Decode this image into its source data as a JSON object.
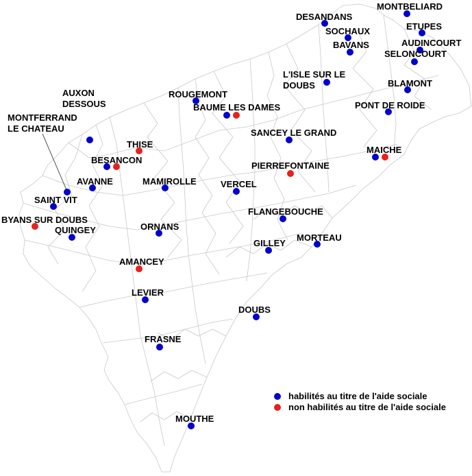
{
  "colors": {
    "habilite": "#0000cc",
    "non_habilite": "#e8211c",
    "border": "#c8c8c8",
    "leader": "#555555"
  },
  "legend": {
    "habilite": "habilités au titre de l'aide sociale",
    "non_habilite": "non habilités au titre de l'aide sociale"
  },
  "towns": {
    "montbeliard": "MONTBELIARD",
    "desandans": "DESANDANS",
    "sochaux": "SOCHAUX",
    "etupes": "ETUPES",
    "bavans": "BAVANS",
    "audincourt": "AUDINCOURT",
    "seloncourt": "SELONCOURT",
    "lisle_1": "L'ISLE SUR LE",
    "lisle_2": "DOUBS",
    "blamont": "BLAMONT",
    "auxon_1": "AUXON",
    "auxon_2": "DESSOUS",
    "rougemont": "ROUGEMONT",
    "baume": "BAUME LES DAMES",
    "pont_de_roide": "PONT DE ROIDE",
    "montferrand_1": "MONTFERRAND",
    "montferrand_2": "LE CHATEAU",
    "sancey": "SANCEY LE GRAND",
    "thise": "THISE",
    "maiche": "MAICHE",
    "besancon": "BESANCON",
    "pierrefontaine": "PIERREFONTAINE",
    "avanne": "AVANNE",
    "mamirolle": "MAMIROLLE",
    "vercel": "VERCEL",
    "saint_vit": "SAINT VIT",
    "flangebouche": "FLANGEBOUCHE",
    "byans": "BYANS SUR DOUBS",
    "quingey": "QUINGEY",
    "ornans": "ORNANS",
    "morteau": "MORTEAU",
    "gilley": "GILLEY",
    "amancey": "AMANCEY",
    "levier": "LEVIER",
    "doubs": "DOUBS",
    "frasne": "FRASNE",
    "mouthe": "MOUTHE"
  }
}
